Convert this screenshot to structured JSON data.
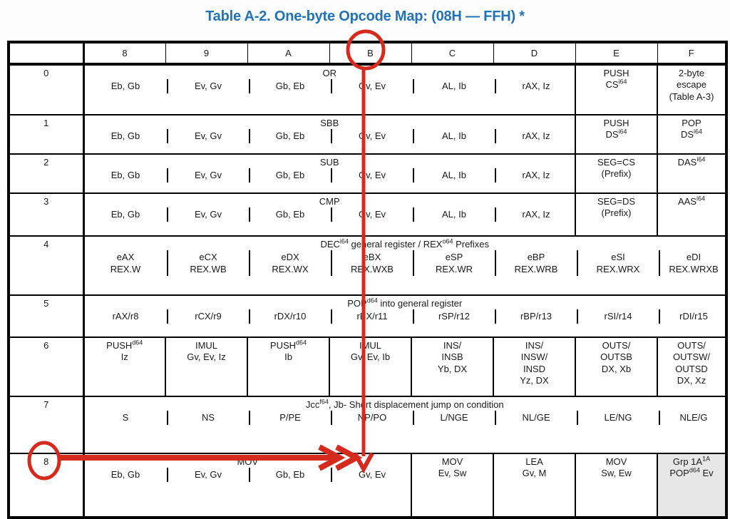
{
  "title": "Table A-2. One-byte Opcode Map: (08H — FFH) *",
  "colors": {
    "title_blue": "#2273b5",
    "annotation_red": "#d52a1e",
    "shaded_cell": "#e7e7e7",
    "table_text": "#1a1a1a"
  },
  "table": {
    "column_headers": [
      "",
      "8",
      "9",
      "A",
      "B",
      "C",
      "D",
      "E",
      "F"
    ],
    "rows": [
      {
        "label": "0",
        "group": {
          "title": "OR",
          "cols": 6,
          "operands": [
            "Eb, Gb",
            "Ev, Gv",
            "Gb, Eb",
            "Gv, Ev",
            "AL, Ib",
            "rAX, Iz"
          ]
        },
        "cells": [
          {
            "text": "PUSH\nCS^{i64}"
          },
          {
            "text": "2-byte\nescape\n(Table A-3)"
          }
        ]
      },
      {
        "label": "1",
        "group": {
          "title": "SBB",
          "cols": 6,
          "operands": [
            "Eb, Gb",
            "Ev, Gv",
            "Gb, Eb",
            "Gv, Ev",
            "AL, Ib",
            "rAX, Iz"
          ]
        },
        "cells": [
          {
            "text": "PUSH\nDS^{i64}"
          },
          {
            "text": "POP\nDS^{i64}"
          }
        ]
      },
      {
        "label": "2",
        "group": {
          "title": "SUB",
          "cols": 6,
          "operands": [
            "Eb, Gb",
            "Ev, Gv",
            "Gb, Eb",
            "Gv, Ev",
            "AL, Ib",
            "rAX, Iz"
          ]
        },
        "cells": [
          {
            "text": "SEG=CS\n(Prefix)"
          },
          {
            "text": "DAS^{i64}"
          }
        ]
      },
      {
        "label": "3",
        "group": {
          "title": "CMP",
          "cols": 6,
          "operands": [
            "Eb, Gb",
            "Ev, Gv",
            "Gb, Eb",
            "Gv, Ev",
            "AL, Ib",
            "rAX, Iz"
          ]
        },
        "cells": [
          {
            "text": "SEG=DS\n(Prefix)"
          },
          {
            "text": "AAS^{i64}"
          }
        ]
      },
      {
        "label": "4",
        "group": {
          "title": "DEC^{i64} general register / REX^{o64} Prefixes",
          "cols": 8,
          "operands": [
            "eAX\nREX.W",
            "eCX\nREX.WB",
            "eDX\nREX.WX",
            "eBX\nREX.WXB",
            "eSP\nREX.WR",
            "eBP\nREX.WRB",
            "eSI\nREX.WRX",
            "eDI\nREX.WRXB"
          ]
        }
      },
      {
        "label": "5",
        "group": {
          "title": "POP^{d64} into general register",
          "cols": 8,
          "operands": [
            "rAX/r8",
            "rCX/r9",
            "rDX/r10",
            "rBX/r11",
            "rSP/r12",
            "rBP/r13",
            "rSI/r14",
            "rDI/r15"
          ]
        }
      },
      {
        "label": "6",
        "cells": [
          {
            "text": "PUSH^{d64}\nIz"
          },
          {
            "text": "IMUL\nGv, Ev, Iz"
          },
          {
            "text": "PUSH^{d64}\nIb"
          },
          {
            "text": "IMUL\nGv, Ev, Ib"
          },
          {
            "text": "INS/\nINSB\nYb, DX"
          },
          {
            "text": "INS/\nINSW/\nINSD\nYz, DX"
          },
          {
            "text": "OUTS/\nOUTSB\nDX, Xb"
          },
          {
            "text": "OUTS/\nOUTSW/\nOUTSD\nDX, Xz"
          }
        ]
      },
      {
        "label": "7",
        "group": {
          "title": "Jcc^{f64}, Jb- Short displacement jump on condition",
          "cols": 8,
          "operands": [
            "S",
            "NS",
            "P/PE",
            "NP/PO",
            "L/NGE",
            "NL/GE",
            "LE/NG",
            "NLE/G"
          ]
        }
      },
      {
        "label": "8",
        "group": {
          "title": "MOV",
          "cols": 4,
          "operands": [
            "Eb, Gb",
            "Ev, Gv",
            "Gb, Eb",
            "Gv, Ev"
          ]
        },
        "cells": [
          {
            "text": "MOV\nEv, Sw"
          },
          {
            "text": "LEA\nGv, M"
          },
          {
            "text": "MOV\nSw, Ew"
          },
          {
            "text": "Grp 1A^{1A}\nPOP^{d64} Ev",
            "shaded": true
          }
        ]
      }
    ]
  },
  "annotations": {
    "circled_column_header": "B",
    "circled_row_label": "8"
  }
}
